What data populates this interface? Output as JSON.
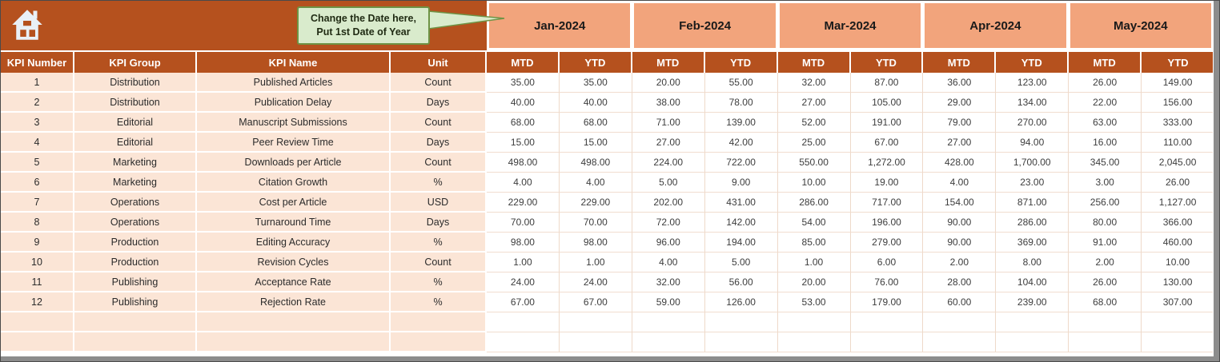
{
  "app": {
    "callout": {
      "line1": "Change the Date here,",
      "line2": "Put 1st Date of Year"
    }
  },
  "table": {
    "months": [
      "Jan-2024",
      "Feb-2024",
      "Mar-2024",
      "Apr-2024",
      "May-2024"
    ],
    "period_labels": {
      "mtd": "MTD",
      "ytd": "YTD"
    },
    "left_headers": [
      "KPI Number",
      "KPI Group",
      "KPI Name",
      "Unit"
    ],
    "rows": [
      {
        "kpi_number": "1",
        "kpi_group": "Distribution",
        "kpi_name": "Published Articles",
        "unit": "Count",
        "values": [
          "35.00",
          "35.00",
          "20.00",
          "55.00",
          "32.00",
          "87.00",
          "36.00",
          "123.00",
          "26.00",
          "149.00"
        ]
      },
      {
        "kpi_number": "2",
        "kpi_group": "Distribution",
        "kpi_name": "Publication Delay",
        "unit": "Days",
        "values": [
          "40.00",
          "40.00",
          "38.00",
          "78.00",
          "27.00",
          "105.00",
          "29.00",
          "134.00",
          "22.00",
          "156.00"
        ]
      },
      {
        "kpi_number": "3",
        "kpi_group": "Editorial",
        "kpi_name": "Manuscript Submissions",
        "unit": "Count",
        "values": [
          "68.00",
          "68.00",
          "71.00",
          "139.00",
          "52.00",
          "191.00",
          "79.00",
          "270.00",
          "63.00",
          "333.00"
        ]
      },
      {
        "kpi_number": "4",
        "kpi_group": "Editorial",
        "kpi_name": "Peer Review Time",
        "unit": "Days",
        "values": [
          "15.00",
          "15.00",
          "27.00",
          "42.00",
          "25.00",
          "67.00",
          "27.00",
          "94.00",
          "16.00",
          "110.00"
        ]
      },
      {
        "kpi_number": "5",
        "kpi_group": "Marketing",
        "kpi_name": "Downloads per Article",
        "unit": "Count",
        "values": [
          "498.00",
          "498.00",
          "224.00",
          "722.00",
          "550.00",
          "1,272.00",
          "428.00",
          "1,700.00",
          "345.00",
          "2,045.00"
        ]
      },
      {
        "kpi_number": "6",
        "kpi_group": "Marketing",
        "kpi_name": "Citation Growth",
        "unit": "%",
        "values": [
          "4.00",
          "4.00",
          "5.00",
          "9.00",
          "10.00",
          "19.00",
          "4.00",
          "23.00",
          "3.00",
          "26.00"
        ]
      },
      {
        "kpi_number": "7",
        "kpi_group": "Operations",
        "kpi_name": "Cost per Article",
        "unit": "USD",
        "values": [
          "229.00",
          "229.00",
          "202.00",
          "431.00",
          "286.00",
          "717.00",
          "154.00",
          "871.00",
          "256.00",
          "1,127.00"
        ]
      },
      {
        "kpi_number": "8",
        "kpi_group": "Operations",
        "kpi_name": "Turnaround Time",
        "unit": "Days",
        "values": [
          "70.00",
          "70.00",
          "72.00",
          "142.00",
          "54.00",
          "196.00",
          "90.00",
          "286.00",
          "80.00",
          "366.00"
        ]
      },
      {
        "kpi_number": "9",
        "kpi_group": "Production",
        "kpi_name": "Editing Accuracy",
        "unit": "%",
        "values": [
          "98.00",
          "98.00",
          "96.00",
          "194.00",
          "85.00",
          "279.00",
          "90.00",
          "369.00",
          "91.00",
          "460.00"
        ]
      },
      {
        "kpi_number": "10",
        "kpi_group": "Production",
        "kpi_name": "Revision Cycles",
        "unit": "Count",
        "values": [
          "1.00",
          "1.00",
          "4.00",
          "5.00",
          "1.00",
          "6.00",
          "2.00",
          "8.00",
          "2.00",
          "10.00"
        ]
      },
      {
        "kpi_number": "11",
        "kpi_group": "Publishing",
        "kpi_name": "Acceptance Rate",
        "unit": "%",
        "values": [
          "24.00",
          "24.00",
          "32.00",
          "56.00",
          "20.00",
          "76.00",
          "28.00",
          "104.00",
          "26.00",
          "130.00"
        ]
      },
      {
        "kpi_number": "12",
        "kpi_group": "Publishing",
        "kpi_name": "Rejection Rate",
        "unit": "%",
        "values": [
          "67.00",
          "67.00",
          "59.00",
          "126.00",
          "53.00",
          "179.00",
          "60.00",
          "239.00",
          "68.00",
          "307.00"
        ]
      }
    ],
    "empty_rows": 2
  },
  "colors": {
    "header_rust": "#B5511E",
    "month_salmon": "#F2A47C",
    "row_peach": "#FBE5D6",
    "callout_bg": "#D9EBCC",
    "callout_border": "#6E9345",
    "scrollbar_gray": "#8C8C8C"
  }
}
